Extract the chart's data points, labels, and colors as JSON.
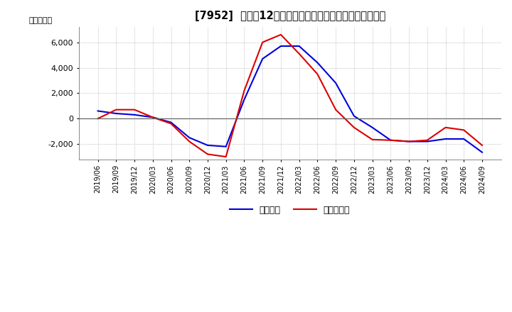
{
  "title": "[7952]  利益だ12か月移動合計の対前年同期増減額の推移",
  "ylabel": "（百万円）",
  "ylim": [
    -3200,
    7200
  ],
  "yticks": [
    -2000,
    0,
    2000,
    4000,
    6000
  ],
  "background_color": "#ffffff",
  "plot_bg_color": "#ffffff",
  "grid_color": "#aaaaaa",
  "line_color_blue": "#0000dd",
  "line_color_red": "#dd0000",
  "legend_blue": "経常利益",
  "legend_red": "当期純利益",
  "dates": [
    "2019/06",
    "2019/09",
    "2019/12",
    "2020/03",
    "2020/06",
    "2020/09",
    "2020/12",
    "2021/03",
    "2021/06",
    "2021/09",
    "2021/12",
    "2022/03",
    "2022/06",
    "2022/09",
    "2022/12",
    "2023/03",
    "2023/06",
    "2023/09",
    "2023/12",
    "2024/03",
    "2024/06",
    "2024/09"
  ],
  "blue_values": [
    600,
    400,
    300,
    100,
    -300,
    -1500,
    -2100,
    -2200,
    1500,
    4700,
    5700,
    5700,
    4400,
    2800,
    200,
    -700,
    -1700,
    -1800,
    -1800,
    -1600,
    -1600,
    -2650
  ],
  "red_values": [
    0,
    700,
    700,
    100,
    -400,
    -1800,
    -2800,
    -3000,
    2200,
    6000,
    6600,
    5100,
    3500,
    700,
    -700,
    -1650,
    -1700,
    -1800,
    -1700,
    -700,
    -900,
    -2100
  ]
}
